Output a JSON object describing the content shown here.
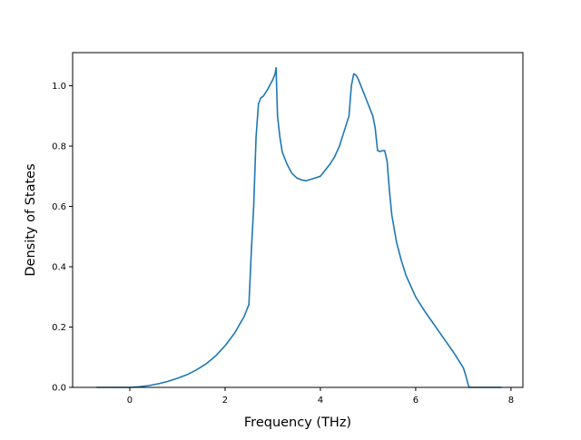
{
  "chart_data": {
    "type": "line",
    "title": "",
    "xlabel": "Frequency (THz)",
    "ylabel": "Density of States",
    "xlim": [
      -1.2,
      8.25
    ],
    "ylim": [
      0.0,
      1.11
    ],
    "xticks": [
      0,
      2,
      4,
      6,
      8
    ],
    "xtick_labels": [
      "0",
      "2",
      "4",
      "6",
      "8"
    ],
    "yticks": [
      0.0,
      0.2,
      0.4,
      0.6,
      0.8,
      1.0
    ],
    "ytick_labels": [
      "0.0",
      "0.2",
      "0.4",
      "0.6",
      "0.8",
      "1.0"
    ],
    "grid": false,
    "legend": "none",
    "line_color": "#1f77b4",
    "series": [
      {
        "x": [
          -0.7,
          -0.4,
          -0.2,
          0.0,
          0.2,
          0.4,
          0.6,
          0.8,
          1.0,
          1.2,
          1.4,
          1.6,
          1.8,
          2.0,
          2.2,
          2.4,
          2.5,
          2.55,
          2.6,
          2.65,
          2.7,
          2.75,
          2.8,
          2.9,
          3.0,
          3.05,
          3.07,
          3.1,
          3.15,
          3.2,
          3.3,
          3.4,
          3.5,
          3.6,
          3.7,
          3.8,
          3.9,
          4.0,
          4.05,
          4.1,
          4.2,
          4.3,
          4.4,
          4.5,
          4.6,
          4.65,
          4.7,
          4.75,
          4.8,
          4.9,
          5.0,
          5.1,
          5.15,
          5.2,
          5.25,
          5.3,
          5.35,
          5.4,
          5.45,
          5.5,
          5.6,
          5.7,
          5.8,
          6.0,
          6.2,
          6.4,
          6.6,
          6.8,
          7.0,
          7.05,
          7.1,
          7.12,
          7.3,
          7.5,
          7.8
        ],
        "y": [
          0.0,
          0.0,
          0.0,
          0.0,
          0.002,
          0.006,
          0.012,
          0.02,
          0.03,
          0.042,
          0.058,
          0.078,
          0.104,
          0.138,
          0.18,
          0.235,
          0.275,
          0.45,
          0.6,
          0.83,
          0.94,
          0.96,
          0.965,
          0.99,
          1.02,
          1.04,
          1.06,
          0.9,
          0.83,
          0.78,
          0.74,
          0.71,
          0.695,
          0.688,
          0.685,
          0.69,
          0.695,
          0.7,
          0.71,
          0.72,
          0.74,
          0.765,
          0.8,
          0.85,
          0.9,
          1.0,
          1.04,
          1.035,
          1.02,
          0.98,
          0.94,
          0.9,
          0.86,
          0.785,
          0.782,
          0.785,
          0.785,
          0.75,
          0.65,
          0.57,
          0.48,
          0.42,
          0.37,
          0.3,
          0.25,
          0.205,
          0.16,
          0.115,
          0.065,
          0.04,
          0.01,
          0.0,
          0.0,
          0.0,
          0.0
        ]
      }
    ]
  }
}
